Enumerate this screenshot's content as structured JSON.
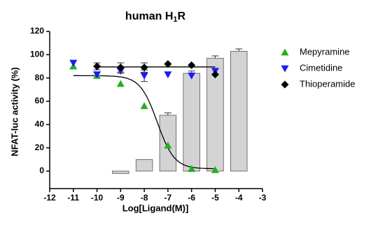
{
  "chart_data": {
    "type": "dose-response",
    "title": [
      "human H",
      "1",
      "R"
    ],
    "x_label": "Log[Ligand(M)]",
    "y_label": "NFAT-luc activity (%)",
    "xlim": [
      -12,
      -3
    ],
    "xticks": [
      -12,
      -11,
      -10,
      -9,
      -8,
      -7,
      -6,
      -5,
      -4,
      -3
    ],
    "ylim": [
      -15,
      120
    ],
    "yticks": [
      0,
      20,
      40,
      60,
      80,
      100,
      120
    ],
    "bars": {
      "color": "#d3d3d3",
      "x": [
        -9,
        -8,
        -7,
        -6,
        -5,
        -4
      ],
      "values": [
        -2,
        10,
        48,
        84,
        97,
        103
      ],
      "errors": [
        0,
        0,
        2,
        2,
        2,
        2
      ]
    },
    "series": [
      {
        "name": "Mepyramine",
        "color": "#22b022",
        "marker": "triangle-up",
        "x": [
          -11,
          -10,
          -9,
          -8,
          -7,
          -6,
          -5
        ],
        "values": [
          90,
          82,
          75,
          56,
          22,
          2,
          1
        ],
        "errors": [
          0,
          0,
          0,
          0,
          0,
          0,
          0
        ],
        "fit": {
          "top": 82,
          "bottom": 2,
          "log_ec50": -7.45,
          "hill": 1.2,
          "range": [
            -11,
            -5
          ]
        }
      },
      {
        "name": "Cimetidine",
        "color": "#1a1aff",
        "marker": "triangle-down",
        "x": [
          -11,
          -10,
          -9,
          -8,
          -7,
          -6,
          -5
        ],
        "values": [
          93,
          83,
          86,
          82,
          83,
          82,
          86
        ],
        "errors": [
          0,
          0,
          2,
          5,
          0,
          0,
          0
        ]
      },
      {
        "name": "Thioperamide",
        "color": "#000000",
        "marker": "diamond",
        "x": [
          -10,
          -9,
          -8,
          -7,
          -6,
          -5
        ],
        "values": [
          90,
          89,
          89,
          92,
          91,
          83
        ],
        "errors": [
          3,
          4,
          4,
          0,
          0,
          0
        ],
        "fit": {
          "top": 89.5,
          "bottom": 89.5,
          "log_ec50": -7,
          "hill": 1,
          "range": [
            -10,
            -5
          ]
        }
      }
    ]
  }
}
